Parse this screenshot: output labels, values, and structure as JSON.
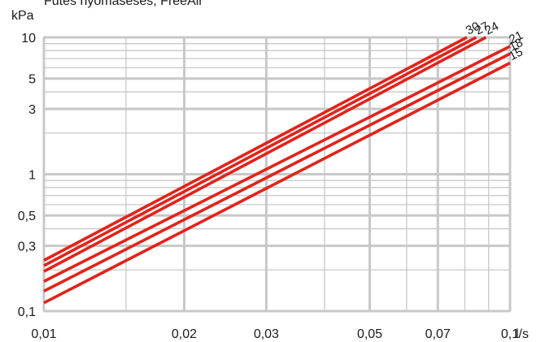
{
  "chart_data": {
    "type": "line",
    "title": "Fűtés nyomásesés, FreeAir",
    "ylabel": "kPa",
    "xlabel": "l/s",
    "x_scale": "log",
    "y_scale": "log",
    "xlim": [
      0.01,
      0.1
    ],
    "ylim": [
      0.1,
      10
    ],
    "grid": true,
    "x_ticks": [
      {
        "value": 0.01,
        "label": "0,01"
      },
      {
        "value": 0.02,
        "label": "0,02"
      },
      {
        "value": 0.03,
        "label": "0,03"
      },
      {
        "value": 0.05,
        "label": "0,05"
      },
      {
        "value": 0.07,
        "label": "0,07"
      },
      {
        "value": 0.1,
        "label": "0,1"
      }
    ],
    "y_ticks": [
      {
        "value": 0.1,
        "label": "0,1"
      },
      {
        "value": 0.3,
        "label": "0,3"
      },
      {
        "value": 0.5,
        "label": "0,5"
      },
      {
        "value": 1,
        "label": "1"
      },
      {
        "value": 3,
        "label": "3"
      },
      {
        "value": 5,
        "label": "5"
      },
      {
        "value": 10,
        "label": "10"
      }
    ],
    "x_gridlines_major": [
      0.01,
      0.02,
      0.03,
      0.05,
      0.07,
      0.1
    ],
    "x_gridlines_minor": [
      0.015,
      0.04,
      0.06,
      0.08,
      0.09
    ],
    "y_gridlines_major": [
      0.1,
      0.3,
      0.5,
      1,
      3,
      5,
      10
    ],
    "y_gridlines_minor": [
      0.2,
      0.4,
      0.6,
      0.7,
      0.8,
      0.9,
      2,
      4,
      6,
      7,
      8,
      9
    ],
    "series": [
      {
        "name": "30",
        "x": [
          0.01,
          0.0808
        ],
        "y": [
          0.235,
          10
        ]
      },
      {
        "name": "27",
        "x": [
          0.01,
          0.0846
        ],
        "y": [
          0.215,
          10
        ]
      },
      {
        "name": "24",
        "x": [
          0.01,
          0.0888
        ],
        "y": [
          0.195,
          10
        ]
      },
      {
        "name": "21",
        "x": [
          0.01,
          0.1
        ],
        "y": [
          0.165,
          8.6
        ]
      },
      {
        "name": "18",
        "x": [
          0.01,
          0.1
        ],
        "y": [
          0.14,
          7.6
        ]
      },
      {
        "name": "15",
        "x": [
          0.01,
          0.1
        ],
        "y": [
          0.115,
          6.5
        ]
      }
    ],
    "line_color": "#e2231a",
    "grid_color": "#c8c8c8"
  }
}
